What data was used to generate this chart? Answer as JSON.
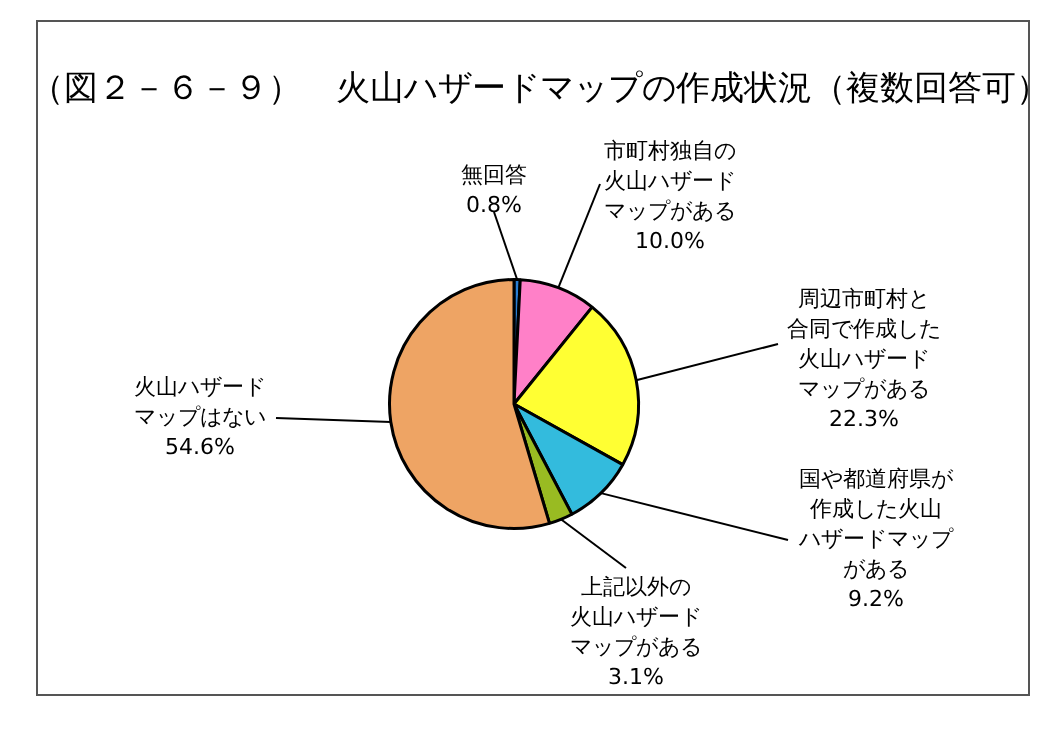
{
  "chart_data": {
    "type": "pie",
    "title": "（図２－６－９）　火山ハザードマップの作成状況（複数回答可）",
    "categories": [
      "無回答",
      "市町村独自の火山ハザードマップがある",
      "周辺市町村と合同で作成した火山ハザードマップがある",
      "国や都道府県が作成した火山ハザードマップがある",
      "上記以外の火山ハザードマップがある",
      "火山ハザードマップはない"
    ],
    "values": [
      0.8,
      10.0,
      22.3,
      9.2,
      3.1,
      54.6
    ],
    "value_labels": [
      "0.8%",
      "10.0%",
      "22.3%",
      "9.2%",
      "3.1%",
      "54.6%"
    ],
    "colors": [
      "#2a7fd4",
      "#ff80c8",
      "#ffff33",
      "#33bbdd",
      "#99bb22",
      "#eea464"
    ],
    "legend": false
  }
}
